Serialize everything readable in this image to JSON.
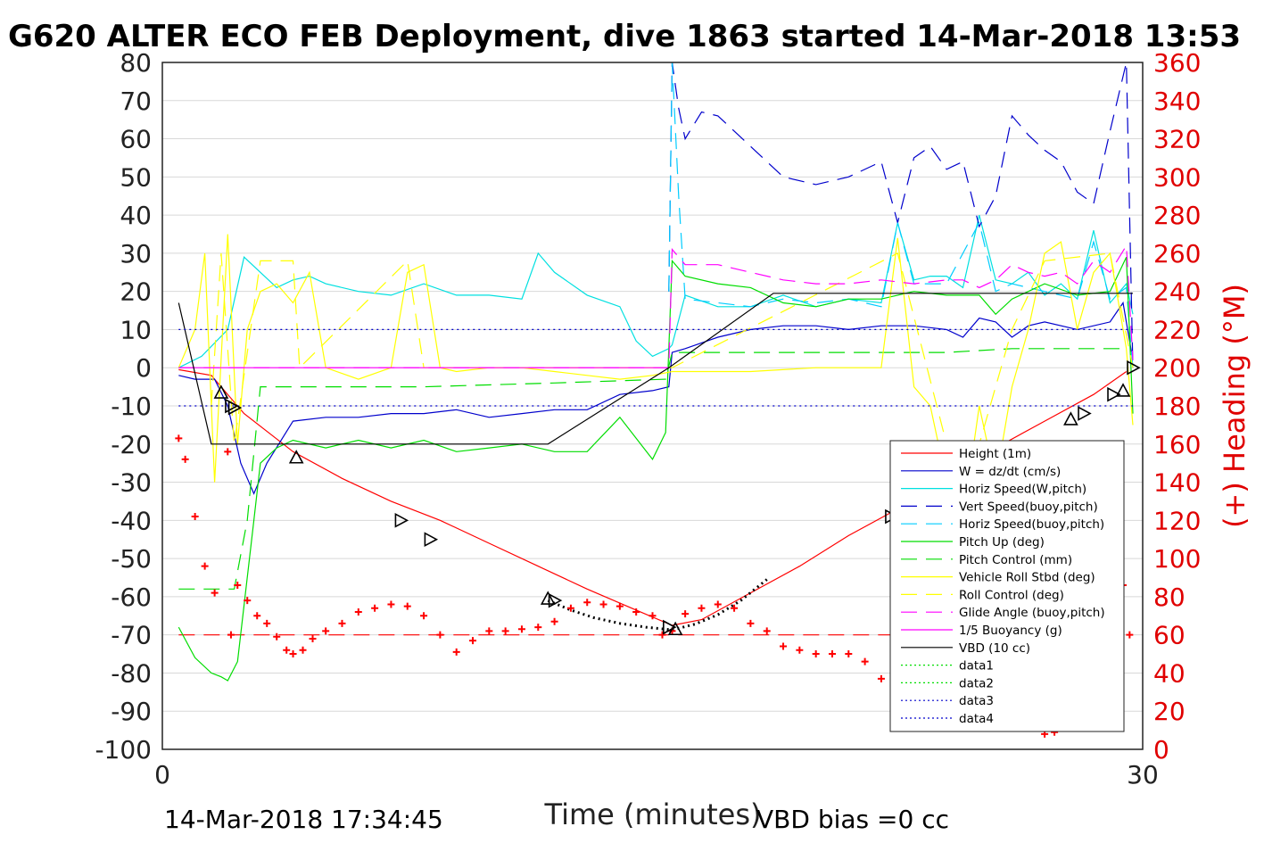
{
  "chart_data": {
    "type": "line",
    "title": "G620 ALTER ECO FEB Deployment, dive 1863 started 14-Mar-2018 13:53",
    "xlabel": "Time (minutes)",
    "ylabel_right": "(+) Heading (°M)",
    "xlim": [
      0,
      30
    ],
    "ylim_left": [
      -100,
      80
    ],
    "ylim_right": [
      0,
      360
    ],
    "x_ticks": [
      "0",
      "30"
    ],
    "y_ticks_left": [
      "80",
      "70",
      "60",
      "50",
      "40",
      "30",
      "20",
      "10",
      "0",
      "-10",
      "-20",
      "-30",
      "-40",
      "-50",
      "-60",
      "-70",
      "-80",
      "-90",
      "-100"
    ],
    "y_ticks_right": [
      "360",
      "340",
      "320",
      "300",
      "280",
      "260",
      "240",
      "220",
      "200",
      "180",
      "160",
      "140",
      "120",
      "100",
      "80",
      "60",
      "40",
      "20",
      "0"
    ],
    "grid": "horizontal",
    "legend_position": "lower-right",
    "footer_left": "14-Mar-2018 17:34:45",
    "footer_right": "VBD bias =0 cc",
    "colors": {
      "height": "#ff0000",
      "w": "#0000cc",
      "horiz": "#00e0e0",
      "vert_buoy": "#0000cc",
      "horiz_buoy": "#00ccff",
      "pitch": "#00dd00",
      "pitch_ctrl": "#00dd00",
      "roll": "#ffff00",
      "roll_ctrl": "#ffff00",
      "glide": "#ff00ff",
      "buoyancy": "#ff00ff",
      "vbd": "#000000",
      "heading": "#ff0000"
    },
    "series": [
      {
        "name": "Height (1m)",
        "style": "solid",
        "color": "#ff0000",
        "x": [
          0.5,
          1.5,
          2.5,
          4,
          5.5,
          7,
          8.5,
          10,
          11.5,
          13,
          14.5,
          15.6,
          16.5,
          18,
          19.5,
          21,
          22.5,
          24,
          25.5,
          27,
          28.5,
          29.5
        ],
        "y": [
          -0.5,
          -2,
          -12,
          -22,
          -29,
          -35,
          -40,
          -46,
          -52,
          -58,
          -63.5,
          -67.5,
          -66,
          -59,
          -52,
          -44,
          -37,
          -28,
          -21,
          -14,
          -7,
          -1
        ]
      },
      {
        "name": "W = dz/dt (cm/s)",
        "style": "solid",
        "color": "#0000cc",
        "x": [
          0.5,
          1,
          1.6,
          2,
          2.4,
          2.8,
          3.2,
          4,
          5,
          6,
          7,
          8,
          9,
          10,
          11,
          12,
          13,
          14,
          15,
          15.5,
          15.6,
          16,
          17,
          18,
          19,
          20,
          21,
          22,
          23,
          24,
          24.5,
          25,
          25.5,
          26,
          26.5,
          27,
          28,
          29,
          29.4,
          29.7
        ],
        "y": [
          -2,
          -3,
          -3,
          -10,
          -25,
          -33,
          -25,
          -14,
          -13,
          -13,
          -12,
          -12,
          -11,
          -13,
          -12,
          -11,
          -11,
          -7,
          -6,
          -5,
          4,
          5,
          8,
          10,
          11,
          11,
          10,
          11,
          11,
          10,
          8,
          13,
          12,
          8,
          11,
          12,
          10,
          12,
          17,
          2
        ]
      },
      {
        "name": "Horiz Speed(W,pitch)",
        "style": "solid",
        "color": "#00e0e0",
        "x": [
          0.5,
          1.2,
          2,
          2.5,
          3,
          3.5,
          4,
          4.5,
          5,
          6,
          7,
          8,
          9,
          10,
          11,
          11.5,
          12,
          13,
          14,
          14.5,
          15,
          15.5,
          15.6,
          16,
          17,
          18,
          19,
          20,
          21,
          22,
          22.5,
          23,
          23.5,
          24,
          24.5,
          25,
          25.5,
          26,
          26.5,
          27,
          27.5,
          28,
          28.5,
          29,
          29.5,
          29.7
        ],
        "y": [
          0,
          3,
          10,
          29,
          25,
          21,
          23,
          24,
          22,
          20,
          19,
          22,
          19,
          19,
          18,
          30,
          25,
          19,
          16,
          7,
          3,
          5,
          6,
          19,
          16,
          16,
          19,
          16,
          18,
          17,
          38,
          23,
          24,
          24,
          21,
          40,
          23,
          22,
          25,
          19,
          22,
          18,
          36,
          17,
          22,
          14
        ]
      },
      {
        "name": "Vert Speed(buoy,pitch)",
        "style": "dash",
        "color": "#0000cc",
        "x": [
          15.5,
          15.6,
          15.8,
          16,
          16.5,
          17,
          18,
          19,
          20,
          21,
          22,
          22.5,
          23,
          23.5,
          24,
          24.5,
          25,
          25.5,
          26,
          26.5,
          27,
          27.5,
          28,
          28.5,
          29,
          29.5,
          29.7
        ],
        "y": [
          20,
          80,
          68,
          60,
          67,
          66,
          58,
          50,
          48,
          50,
          54,
          38,
          55,
          58,
          52,
          54,
          37,
          45,
          66,
          61,
          57,
          54,
          46,
          43,
          62,
          80,
          0
        ]
      },
      {
        "name": "Horiz Speed(buoy,pitch)",
        "style": "dash",
        "color": "#00ccff",
        "x": [
          15.5,
          15.6,
          15.8,
          16,
          17,
          18,
          19,
          20,
          21,
          22,
          22.5,
          23,
          24,
          25,
          25.5,
          26,
          27,
          28,
          28.5,
          29,
          29.5,
          29.7
        ],
        "y": [
          20,
          80,
          45,
          18,
          17,
          16,
          18,
          17,
          18,
          16,
          38,
          22,
          22,
          38,
          20,
          22,
          20,
          18,
          33,
          18,
          21,
          0
        ]
      },
      {
        "name": "Pitch Up (deg)",
        "style": "solid",
        "color": "#00dd00",
        "x": [
          0.5,
          1,
          1.5,
          1.8,
          2,
          2.3,
          2.8,
          3,
          3.5,
          4,
          5,
          6,
          7,
          8,
          9,
          10,
          11,
          12,
          13,
          14,
          15,
          15.4,
          15.6,
          16,
          17,
          18,
          19,
          20,
          21,
          22,
          22.5,
          23,
          24,
          25,
          25.5,
          26,
          26.5,
          27,
          28,
          29,
          29.5,
          29.7
        ],
        "y": [
          -68,
          -76,
          -80,
          -81,
          -82,
          -77,
          -40,
          -25,
          -21,
          -19,
          -21,
          -19,
          -21,
          -19,
          -22,
          -21,
          -20,
          -22,
          -22,
          -13,
          -24,
          -17,
          28,
          24,
          22,
          21,
          17,
          16,
          18,
          18,
          19,
          20,
          19,
          19,
          14,
          18,
          20,
          22,
          19,
          20,
          29,
          -12
        ]
      },
      {
        "name": "Pitch Control (mm)",
        "style": "dash",
        "color": "#00dd00",
        "x": [
          0.5,
          1.5,
          2.2,
          2.6,
          3,
          4,
          8,
          12,
          15.4,
          15.6,
          16,
          19,
          22,
          24,
          26,
          28,
          29.5
        ],
        "y": [
          -58,
          -58,
          -58,
          -40,
          -5,
          -5,
          -5,
          -4,
          -3,
          4,
          4,
          4,
          4,
          4,
          5,
          5,
          5
        ]
      },
      {
        "name": "Vehicle Roll Stbd (deg)",
        "style": "solid",
        "color": "#ffff00",
        "x": [
          0.5,
          1,
          1.3,
          1.6,
          2,
          2.3,
          2.6,
          3,
          3.5,
          4,
          4.5,
          5,
          6,
          7,
          7.5,
          8,
          8.5,
          9,
          10,
          11,
          12,
          13,
          14,
          15,
          15.6,
          16,
          18,
          20,
          22,
          22.5,
          23,
          23.5,
          24,
          24.5,
          25,
          25.5,
          26,
          26.5,
          27,
          27.5,
          28,
          28.5,
          29,
          29.5,
          29.7
        ],
        "y": [
          0,
          10,
          30,
          -30,
          35,
          -20,
          10,
          20,
          22,
          17,
          25,
          0,
          -3,
          0,
          25,
          27,
          0,
          -1,
          0,
          0,
          -1,
          -2,
          -3,
          -2,
          -1,
          -1,
          -1,
          0,
          0,
          34,
          -5,
          -10,
          -30,
          -40,
          -10,
          -30,
          -5,
          10,
          30,
          33,
          10,
          25,
          30,
          5,
          -15
        ]
      },
      {
        "name": "Roll Control (deg)",
        "style": "dash",
        "color": "#ffff00",
        "x": [
          1.5,
          1.8,
          2.2,
          3,
          4,
          4.2,
          7.5,
          8,
          9,
          15.6,
          22.5,
          24,
          24.5,
          25,
          26,
          27,
          29,
          29.7
        ],
        "y": [
          -10,
          30,
          -20,
          28,
          28,
          0,
          28,
          0,
          0,
          0,
          30,
          -20,
          -40,
          -20,
          10,
          28,
          30,
          0
        ]
      },
      {
        "name": "Glide Angle (buoy,pitch)",
        "style": "dash",
        "color": "#ff00ff",
        "x": [
          0.5,
          15.5,
          15.6,
          16,
          17,
          18,
          19,
          20,
          21,
          22,
          23,
          24,
          24.5,
          25,
          25.5,
          26,
          26.5,
          27,
          27.5,
          28,
          28.5,
          29,
          29.5,
          29.7
        ],
        "y": [
          0,
          0,
          31,
          27,
          27,
          25,
          23,
          22,
          22,
          23,
          22,
          23,
          23,
          21,
          23,
          27,
          25,
          24,
          25,
          22,
          28,
          25,
          32,
          2
        ]
      },
      {
        "name": "1/5 Buoyancy (g)",
        "style": "solid",
        "color": "#ff00ff",
        "x": [
          0.5,
          15.5
        ],
        "y": [
          0,
          0
        ]
      },
      {
        "name": "VBD (10 cc)",
        "style": "solid",
        "color": "#000000",
        "x": [
          0.5,
          1.5,
          11.8,
          15.5,
          18.7,
          29.7
        ],
        "y": [
          17,
          -20,
          -20,
          0,
          19.5,
          19.5
        ]
      },
      {
        "name": "data1",
        "style": "dot",
        "color": "#00dd00",
        "x": [],
        "y": []
      },
      {
        "name": "data2",
        "style": "dot",
        "color": "#00dd00",
        "x": [],
        "y": []
      },
      {
        "name": "data3",
        "style": "dot",
        "color": "#0000cc",
        "x": [
          0.5,
          29.7
        ],
        "y": [
          10,
          10
        ]
      },
      {
        "name": "data4",
        "style": "dot",
        "color": "#0000cc",
        "x": [
          0.5,
          29.7
        ],
        "y": [
          -10,
          -10
        ]
      }
    ],
    "heading_ref": {
      "axis": "right",
      "value": 60
    },
    "heading_points": {
      "axis": "right",
      "x": [
        0.5,
        0.7,
        1,
        1.3,
        1.6,
        2,
        2.1,
        2.3,
        2.6,
        2.9,
        3.2,
        3.5,
        3.8,
        4,
        4.3,
        4.6,
        5,
        5.5,
        6,
        6.5,
        7,
        7.5,
        8,
        8.5,
        9,
        9.5,
        10,
        10.5,
        11,
        11.5,
        12,
        12.5,
        13,
        13.5,
        14,
        14.5,
        15,
        15.3,
        15.6,
        16,
        16.5,
        17,
        17.5,
        18,
        18.5,
        19,
        19.5,
        20,
        20.5,
        21,
        21.5,
        22,
        22.5,
        23,
        23.3,
        23.5,
        23.8,
        24,
        24.3,
        24.5,
        24.7,
        25,
        25.3,
        25.6,
        26,
        26.3,
        26.6,
        27,
        27.3,
        27.6,
        28,
        28.3,
        28.5,
        28.8,
        29,
        29.2,
        29.4,
        29.6
      ],
      "y": [
        163,
        152,
        122,
        96,
        82,
        156,
        60,
        86,
        78,
        70,
        66,
        59,
        52,
        50,
        52,
        58,
        62,
        66,
        72,
        74,
        76,
        75,
        70,
        60,
        51,
        57,
        62,
        62,
        63,
        64,
        67,
        74,
        77,
        76,
        75,
        72,
        70,
        60,
        62,
        71,
        74,
        76,
        74,
        66,
        62,
        54,
        52,
        50,
        50,
        50,
        46,
        37,
        31,
        50,
        93,
        100,
        74,
        93,
        116,
        68,
        52,
        40,
        35,
        30,
        25,
        20,
        12,
        8,
        9,
        17,
        32,
        55,
        78,
        85,
        113,
        98,
        86,
        60
      ]
    },
    "markers": {
      "x": [
        1.8,
        2.1,
        2.2,
        4.1,
        7.3,
        8.2,
        11.8,
        12,
        15.5,
        15.7,
        22.3,
        22.6,
        23.1,
        23.4,
        25,
        25.3,
        25.8,
        26.1,
        27.8,
        28.2,
        29.1,
        29.4,
        29.7
      ],
      "y": [
        -6.5,
        -10,
        -10.5,
        -23.5,
        -40,
        -45,
        -60.5,
        -61,
        -68,
        -68.5,
        -39,
        -37.5,
        -35.5,
        -34.5,
        -26,
        -24.5,
        -22.5,
        -22,
        -13.5,
        -12,
        -7,
        -6,
        0
      ]
    },
    "dotted_curve": {
      "x": [
        11.8,
        12.5,
        13.2,
        14,
        14.8,
        15.6,
        16.3,
        17,
        17.7,
        18.5
      ],
      "y": [
        -61,
        -63.5,
        -65.5,
        -67,
        -68,
        -68.7,
        -67.2,
        -64.7,
        -61,
        -55.5
      ]
    }
  }
}
